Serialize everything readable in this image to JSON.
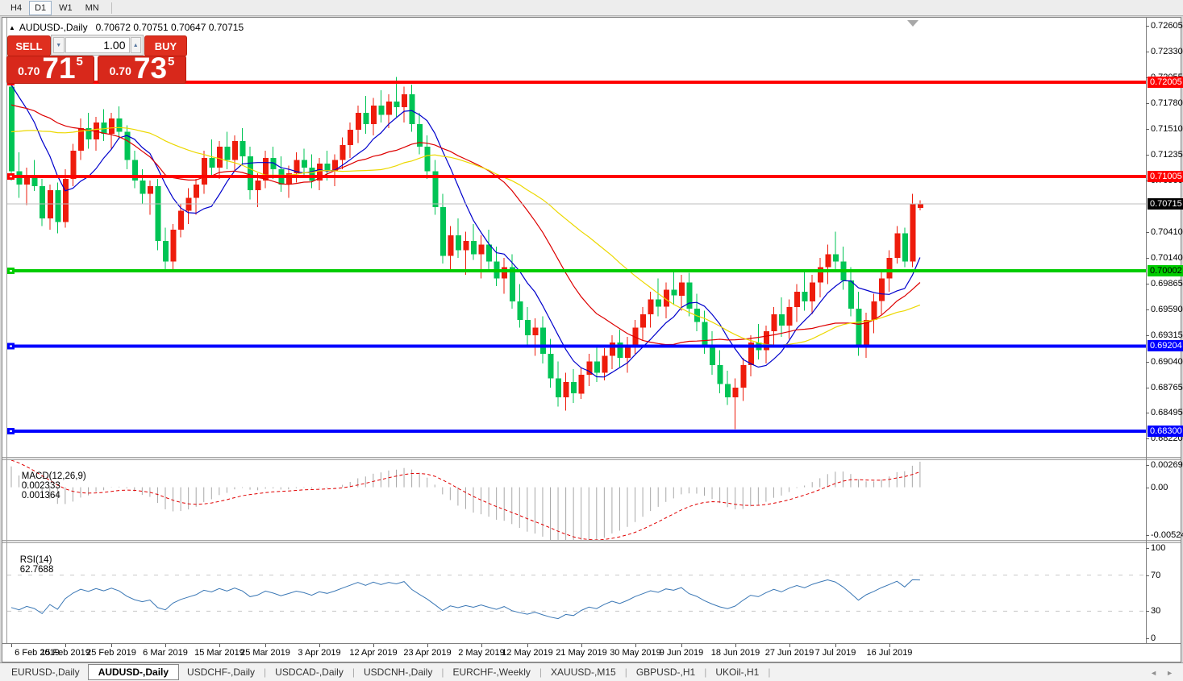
{
  "toolbar": {
    "timeframes": [
      "H4",
      "D1",
      "W1",
      "MN"
    ],
    "active": "D1"
  },
  "chart": {
    "title_symbol": "AUDUSD-,Daily",
    "title_ohlc": "0.70672 0.70751 0.70647 0.70715",
    "collapse_arrow": "▲",
    "trade_panel": {
      "sell_label": "SELL",
      "buy_label": "BUY",
      "volume": "1.00",
      "spinner_down": "▼",
      "spinner_up": "▲",
      "sell_price": {
        "prefix": "0.70",
        "big": "71",
        "sup": "5"
      },
      "buy_price": {
        "prefix": "0.70",
        "big": "73",
        "sup": "5"
      },
      "panel_color": "#df2f1f"
    }
  },
  "chart_data": {
    "type": "candlestick",
    "symbol": "AUDUSD",
    "timeframe": "Daily",
    "title": "AUDUSD-,Daily",
    "current_bar": {
      "open": 0.70672,
      "high": 0.70751,
      "low": 0.70647,
      "close": 0.70715
    },
    "y_range": [
      0.680258,
      0.72674
    ],
    "color_up_candle": "#ee1c0c",
    "color_down_candle": "#00c455",
    "price_axis_ticks": [
      "0.72605",
      "0.72330",
      "0.72055",
      "0.71780",
      "0.71510",
      "0.71235",
      "0.70960",
      "0.70410",
      "0.70140",
      "0.69865",
      "0.69590",
      "0.69315",
      "0.69040",
      "0.68765",
      "0.68495",
      "0.68220"
    ],
    "horizontal_levels": [
      {
        "price": 0.72005,
        "label": "0.72005",
        "color": "#ff0000",
        "text_color": "#ffffff"
      },
      {
        "price": 0.71005,
        "label": "0.71005",
        "color": "#ff0000",
        "text_color": "#ffffff"
      },
      {
        "price": 0.70002,
        "label": "0.70002",
        "color": "#00cc00",
        "text_color": "#000000"
      },
      {
        "price": 0.69204,
        "label": "0.69204",
        "color": "#0000ff",
        "text_color": "#ffffff"
      },
      {
        "price": 0.683,
        "label": "0.68300",
        "color": "#0000ff",
        "text_color": "#ffffff"
      }
    ],
    "current_price_line": {
      "price": 0.70715,
      "label": "0.70715",
      "bg": "#000000",
      "text_color": "#ffffff",
      "line_color": "#bcbcbc"
    },
    "moving_averages": [
      {
        "period": 8,
        "color": "#0000cc"
      },
      {
        "period": 21,
        "color": "#dd0000"
      },
      {
        "period": 34,
        "color": "#ecd800"
      }
    ],
    "date_labels": [
      {
        "text": "6 Feb 2019",
        "index": 0
      },
      {
        "text": "15 Feb 2019",
        "index": 7
      },
      {
        "text": "25 Feb 2019",
        "index": 13
      },
      {
        "text": "6 Mar 2019",
        "index": 20
      },
      {
        "text": "15 Mar 2019",
        "index": 27
      },
      {
        "text": "25 Mar 2019",
        "index": 33
      },
      {
        "text": "3 Apr 2019",
        "index": 40
      },
      {
        "text": "12 Apr 2019",
        "index": 47
      },
      {
        "text": "23 Apr 2019",
        "index": 54
      },
      {
        "text": "2 May 2019",
        "index": 61
      },
      {
        "text": "12 May 2019",
        "index": 67
      },
      {
        "text": "21 May 2019",
        "index": 74
      },
      {
        "text": "30 May 2019",
        "index": 81
      },
      {
        "text": "9 Jun 2019",
        "index": 87
      },
      {
        "text": "18 Jun 2019",
        "index": 94
      },
      {
        "text": "27 Jun 2019",
        "index": 101
      },
      {
        "text": "7 Jul 2019",
        "index": 107
      },
      {
        "text": "16 Jul 2019",
        "index": 114
      }
    ],
    "candles": [
      [
        0.7196,
        0.7205,
        0.7096,
        0.7106
      ],
      [
        0.7106,
        0.7126,
        0.7078,
        0.7092
      ],
      [
        0.7092,
        0.711,
        0.707,
        0.7102
      ],
      [
        0.7102,
        0.7118,
        0.7085,
        0.709
      ],
      [
        0.709,
        0.7098,
        0.7048,
        0.7056
      ],
      [
        0.7056,
        0.7092,
        0.7044,
        0.7086
      ],
      [
        0.7086,
        0.7094,
        0.704,
        0.7052
      ],
      [
        0.7052,
        0.7108,
        0.7046,
        0.7098
      ],
      [
        0.7098,
        0.7135,
        0.709,
        0.7128
      ],
      [
        0.7128,
        0.7162,
        0.7118,
        0.7152
      ],
      [
        0.7152,
        0.7168,
        0.713,
        0.714
      ],
      [
        0.714,
        0.7164,
        0.7128,
        0.7158
      ],
      [
        0.7158,
        0.7172,
        0.7138,
        0.7146
      ],
      [
        0.7146,
        0.7168,
        0.713,
        0.7162
      ],
      [
        0.7162,
        0.7175,
        0.714,
        0.7148
      ],
      [
        0.7148,
        0.7155,
        0.7108,
        0.7118
      ],
      [
        0.7118,
        0.7128,
        0.7088,
        0.7096
      ],
      [
        0.7096,
        0.7108,
        0.7072,
        0.7082
      ],
      [
        0.7082,
        0.7096,
        0.706,
        0.709
      ],
      [
        0.709,
        0.7098,
        0.7022,
        0.7032
      ],
      [
        0.7032,
        0.7046,
        0.7002,
        0.701
      ],
      [
        0.701,
        0.705,
        0.7,
        0.7044
      ],
      [
        0.7044,
        0.7072,
        0.7036,
        0.7064
      ],
      [
        0.7064,
        0.7088,
        0.705,
        0.7078
      ],
      [
        0.7078,
        0.7098,
        0.706,
        0.7092
      ],
      [
        0.7092,
        0.7128,
        0.7082,
        0.712
      ],
      [
        0.712,
        0.714,
        0.71,
        0.711
      ],
      [
        0.711,
        0.7138,
        0.7098,
        0.7132
      ],
      [
        0.7132,
        0.7148,
        0.7108,
        0.7118
      ],
      [
        0.7118,
        0.7144,
        0.7106,
        0.7138
      ],
      [
        0.7138,
        0.7152,
        0.7112,
        0.7122
      ],
      [
        0.7122,
        0.7132,
        0.7076,
        0.7086
      ],
      [
        0.7086,
        0.7104,
        0.7068,
        0.7096
      ],
      [
        0.7096,
        0.7128,
        0.7088,
        0.712
      ],
      [
        0.712,
        0.7132,
        0.7098,
        0.7108
      ],
      [
        0.7108,
        0.7122,
        0.7084,
        0.7092
      ],
      [
        0.7092,
        0.7112,
        0.7078,
        0.7104
      ],
      [
        0.7104,
        0.7126,
        0.7094,
        0.7118
      ],
      [
        0.7118,
        0.713,
        0.71,
        0.711
      ],
      [
        0.711,
        0.7124,
        0.7088,
        0.7096
      ],
      [
        0.7096,
        0.712,
        0.7086,
        0.7114
      ],
      [
        0.7114,
        0.7128,
        0.7096,
        0.7106
      ],
      [
        0.7106,
        0.7124,
        0.709,
        0.7118
      ],
      [
        0.7118,
        0.7142,
        0.7108,
        0.7134
      ],
      [
        0.7134,
        0.7158,
        0.712,
        0.715
      ],
      [
        0.715,
        0.7176,
        0.7136,
        0.7168
      ],
      [
        0.7168,
        0.7186,
        0.7146,
        0.7156
      ],
      [
        0.7156,
        0.7184,
        0.7144,
        0.7176
      ],
      [
        0.7176,
        0.7192,
        0.7158,
        0.7166
      ],
      [
        0.7166,
        0.7188,
        0.7152,
        0.718
      ],
      [
        0.718,
        0.7206,
        0.7164,
        0.7174
      ],
      [
        0.7174,
        0.7196,
        0.7158,
        0.7188
      ],
      [
        0.7188,
        0.7198,
        0.7148,
        0.7156
      ],
      [
        0.7156,
        0.7168,
        0.7124,
        0.7132
      ],
      [
        0.7132,
        0.7144,
        0.7098,
        0.7106
      ],
      [
        0.7106,
        0.7118,
        0.706,
        0.7068
      ],
      [
        0.7068,
        0.7082,
        0.7008,
        0.7016
      ],
      [
        0.7016,
        0.7048,
        0.7002,
        0.7038
      ],
      [
        0.7038,
        0.7056,
        0.7014,
        0.7022
      ],
      [
        0.7022,
        0.7042,
        0.6996,
        0.7032
      ],
      [
        0.7032,
        0.705,
        0.7012,
        0.7018
      ],
      [
        0.7018,
        0.7038,
        0.6992,
        0.7028
      ],
      [
        0.7028,
        0.7044,
        0.7002,
        0.701
      ],
      [
        0.701,
        0.7026,
        0.6984,
        0.6992
      ],
      [
        0.6992,
        0.7014,
        0.6976,
        0.7004
      ],
      [
        0.7004,
        0.7018,
        0.696,
        0.6968
      ],
      [
        0.6968,
        0.6986,
        0.694,
        0.6948
      ],
      [
        0.6948,
        0.6962,
        0.6922,
        0.6932
      ],
      [
        0.6932,
        0.695,
        0.691,
        0.694
      ],
      [
        0.694,
        0.6952,
        0.6902,
        0.6912
      ],
      [
        0.6912,
        0.6928,
        0.6876,
        0.6886
      ],
      [
        0.6886,
        0.6904,
        0.6856,
        0.6866
      ],
      [
        0.6866,
        0.6892,
        0.6852,
        0.6882
      ],
      [
        0.6882,
        0.6896,
        0.686,
        0.687
      ],
      [
        0.687,
        0.6898,
        0.6864,
        0.689
      ],
      [
        0.689,
        0.6912,
        0.6878,
        0.6904
      ],
      [
        0.6904,
        0.692,
        0.6882,
        0.6892
      ],
      [
        0.6892,
        0.6918,
        0.6884,
        0.691
      ],
      [
        0.691,
        0.6932,
        0.6896,
        0.6924
      ],
      [
        0.6924,
        0.6938,
        0.6898,
        0.6908
      ],
      [
        0.6908,
        0.693,
        0.6892,
        0.6922
      ],
      [
        0.6922,
        0.6948,
        0.6912,
        0.694
      ],
      [
        0.694,
        0.6962,
        0.6926,
        0.6954
      ],
      [
        0.6954,
        0.6978,
        0.694,
        0.697
      ],
      [
        0.697,
        0.6992,
        0.6952,
        0.6962
      ],
      [
        0.6962,
        0.6988,
        0.695,
        0.698
      ],
      [
        0.698,
        0.7,
        0.6964,
        0.6974
      ],
      [
        0.6974,
        0.6996,
        0.6958,
        0.6988
      ],
      [
        0.6988,
        0.6998,
        0.6952,
        0.696
      ],
      [
        0.696,
        0.6976,
        0.6936,
        0.6946
      ],
      [
        0.6946,
        0.6958,
        0.6912,
        0.6922
      ],
      [
        0.6922,
        0.6936,
        0.689,
        0.69
      ],
      [
        0.69,
        0.6916,
        0.687,
        0.688
      ],
      [
        0.688,
        0.6894,
        0.6858,
        0.6866
      ],
      [
        0.6866,
        0.6886,
        0.6832,
        0.6876
      ],
      [
        0.6876,
        0.6908,
        0.6862,
        0.69
      ],
      [
        0.69,
        0.6932,
        0.6888,
        0.6924
      ],
      [
        0.6924,
        0.6944,
        0.6906,
        0.6916
      ],
      [
        0.6916,
        0.6942,
        0.6902,
        0.6936
      ],
      [
        0.6936,
        0.6962,
        0.6922,
        0.6954
      ],
      [
        0.6954,
        0.6972,
        0.693,
        0.6942
      ],
      [
        0.6942,
        0.697,
        0.6928,
        0.6962
      ],
      [
        0.6962,
        0.6986,
        0.6946,
        0.6978
      ],
      [
        0.6978,
        0.7,
        0.6958,
        0.6968
      ],
      [
        0.6968,
        0.6996,
        0.6954,
        0.6988
      ],
      [
        0.6988,
        0.7014,
        0.6972,
        0.7004
      ],
      [
        0.7004,
        0.7028,
        0.6986,
        0.7018
      ],
      [
        0.7018,
        0.7042,
        0.7,
        0.701
      ],
      [
        0.701,
        0.7026,
        0.698,
        0.699
      ],
      [
        0.699,
        0.7004,
        0.6952,
        0.696
      ],
      [
        0.696,
        0.6978,
        0.691,
        0.692
      ],
      [
        0.692,
        0.6956,
        0.6908,
        0.6948
      ],
      [
        0.6948,
        0.6976,
        0.6934,
        0.6968
      ],
      [
        0.6968,
        0.7,
        0.6954,
        0.6992
      ],
      [
        0.6992,
        0.7022,
        0.6978,
        0.7014
      ],
      [
        0.7014,
        0.7048,
        0.7008,
        0.704
      ],
      [
        0.704,
        0.7046,
        0.7004,
        0.701
      ],
      [
        0.701,
        0.7082,
        0.7004,
        0.7072
      ],
      [
        0.70672,
        0.70751,
        0.70647,
        0.70715
      ]
    ]
  },
  "macd": {
    "name": "MACD(12,26,9)",
    "value_main": "0.002333",
    "value_signal": "0.001364",
    "params": [
      12,
      26,
      9
    ],
    "scale": {
      "max": "0.002694",
      "zero": "0.00",
      "min": "-0.005242"
    },
    "range": [
      -0.005242,
      0.002694
    ],
    "histogram_color": "#a8a8a8",
    "signal_color": "#e00000"
  },
  "rsi": {
    "name": "RSI(14)",
    "value": "62.7688",
    "period": 14,
    "scale_labels": [
      {
        "value": 100,
        "text": "100"
      },
      {
        "value": 70,
        "text": "70"
      },
      {
        "value": 30,
        "text": "30"
      },
      {
        "value": 0,
        "text": "0"
      }
    ],
    "levels": [
      70,
      30
    ],
    "line_color": "#3a77b5",
    "level_color": "#c8c8c8"
  },
  "tabs": {
    "items": [
      "EURUSD-,Daily",
      "AUDUSD-,Daily",
      "USDCHF-,Daily",
      "USDCAD-,Daily",
      "USDCNH-,Daily",
      "EURCHF-,Weekly",
      "XAUUSD-,M15",
      "GBPUSD-,H1",
      "UKOil-,H1"
    ],
    "active_index": 1,
    "nav_left": "◄",
    "nav_right": "►"
  }
}
